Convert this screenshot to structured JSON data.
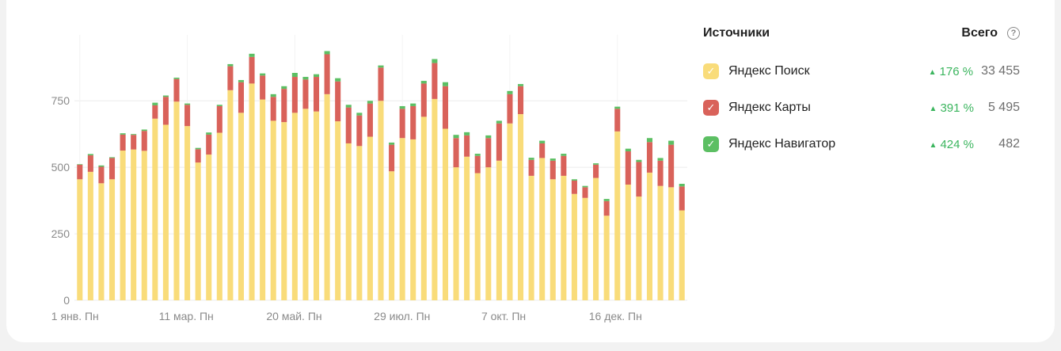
{
  "legend": {
    "title": "Источники",
    "total_label": "Всего",
    "help_icon": "?",
    "items": [
      {
        "label": "Яндекс Поиск",
        "color": "#f9dc7a",
        "delta": "176 %",
        "total": "33 455"
      },
      {
        "label": "Яндекс Карты",
        "color": "#d9625a",
        "delta": "391 %",
        "total": "5 495"
      },
      {
        "label": "Яндекс Навигатор",
        "color": "#5cbf63",
        "delta": "424 %",
        "total": "482"
      }
    ]
  },
  "chart_data": {
    "type": "bar",
    "stacked": true,
    "ylim": [
      0,
      1000
    ],
    "y_ticks": [
      0,
      250,
      500,
      750
    ],
    "grid": true,
    "x_tick_labels": [
      {
        "index": 0,
        "label": "1 янв. Пн"
      },
      {
        "index": 10,
        "label": "11 мар. Пн"
      },
      {
        "index": 20,
        "label": "20 май. Пн"
      },
      {
        "index": 30,
        "label": "29 июл. Пн"
      },
      {
        "index": 40,
        "label": "7 окт. Пн"
      },
      {
        "index": 50,
        "label": "16 дек. Пн"
      }
    ],
    "series": [
      {
        "name": "Яндекс Поиск",
        "color": "#f9dc7a",
        "values": [
          455,
          483,
          440,
          455,
          563,
          567,
          562,
          683,
          660,
          747,
          655,
          518,
          548,
          630,
          790,
          705,
          815,
          755,
          675,
          670,
          705,
          720,
          710,
          775,
          673,
          590,
          580,
          615,
          750,
          485,
          610,
          605,
          690,
          757,
          645,
          500,
          540,
          478,
          500,
          525,
          665,
          700,
          468,
          535,
          455,
          468,
          400,
          385,
          460,
          318,
          635,
          435,
          390,
          480,
          430,
          425,
          338
        ]
      },
      {
        "name": "Яндекс Карты",
        "color": "#d9625a",
        "values": [
          55,
          62,
          62,
          80,
          60,
          55,
          75,
          50,
          105,
          85,
          80,
          50,
          75,
          100,
          90,
          115,
          100,
          90,
          90,
          125,
          135,
          110,
          130,
          150,
          150,
          135,
          115,
          125,
          125,
          100,
          110,
          125,
          125,
          135,
          160,
          110,
          80,
          65,
          110,
          140,
          110,
          105,
          60,
          55,
          70,
          75,
          50,
          40,
          50,
          55,
          85,
          125,
          130,
          115,
          95,
          160,
          90
        ]
      },
      {
        "name": "Яндекс Навигатор",
        "color": "#5cbf63",
        "values": [
          2,
          5,
          5,
          3,
          5,
          3,
          5,
          10,
          5,
          5,
          5,
          5,
          8,
          5,
          8,
          8,
          12,
          8,
          10,
          10,
          15,
          10,
          10,
          12,
          12,
          10,
          10,
          10,
          8,
          8,
          10,
          10,
          10,
          15,
          15,
          12,
          12,
          8,
          10,
          10,
          12,
          8,
          8,
          10,
          8,
          8,
          5,
          5,
          5,
          8,
          8,
          10,
          8,
          15,
          10,
          15,
          10
        ]
      }
    ]
  }
}
